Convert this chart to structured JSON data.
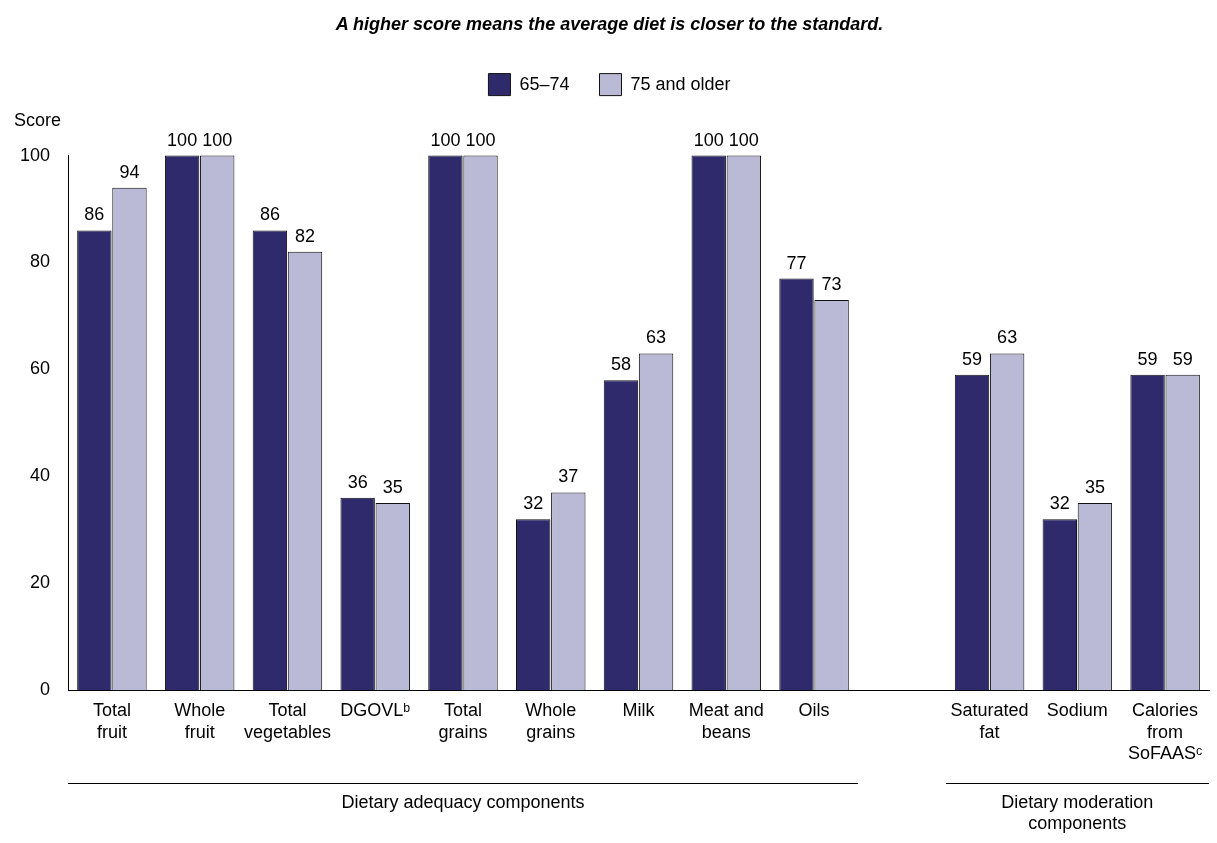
{
  "chart_data": {
    "type": "bar",
    "title": "A higher score means the average diet is closer to the standard.",
    "ylabel": "Score",
    "categories": [
      "Total fruit",
      "Whole fruit",
      "Total vegetables",
      "DGOVLᵇ",
      "Total grains",
      "Whole grains",
      "Milk",
      "Meat and beans",
      "Oils",
      null,
      "Saturated fat",
      "Sodium",
      "Calories from SoFAASᶜ"
    ],
    "series": [
      {
        "name": "65–74",
        "color": "#2e2a6b",
        "values": [
          86,
          100,
          86,
          36,
          100,
          32,
          58,
          100,
          77,
          null,
          59,
          32,
          59
        ]
      },
      {
        "name": "75 and older",
        "color": "#bbbad6",
        "values": [
          94,
          100,
          82,
          35,
          100,
          37,
          63,
          100,
          73,
          null,
          63,
          35,
          59
        ]
      }
    ],
    "ylim": [
      0,
      100
    ],
    "yticks": [
      0,
      20,
      40,
      60,
      80,
      100
    ],
    "grid": false,
    "legend": "top",
    "data_labels": true,
    "annotations": [
      "Dietary adequacy components",
      "Dietary moderation components"
    ]
  }
}
